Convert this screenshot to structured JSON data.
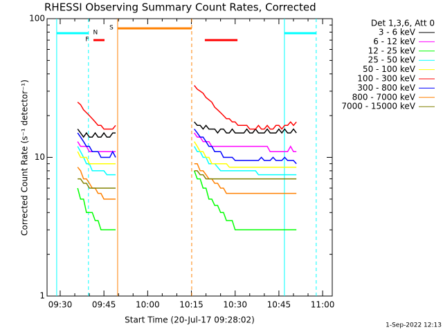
{
  "chart_data": {
    "type": "line",
    "title": "RHESSI Observing Summary Count Rates, Corrected",
    "xlabel": "Start Time (20-Jul-17 09:28:02)",
    "ylabel": "Corrected Count Rate (s⁻¹ detector⁻¹)",
    "legend_title": "Det 1,3,6, Att 0",
    "footer": "1-Sep-2022 12:13",
    "log_y": true,
    "legend": "right",
    "xlim": [
      565.5,
      663.3
    ],
    "ylim": [
      1,
      100
    ],
    "xticks": [
      {
        "value": 570,
        "label": "09:30"
      },
      {
        "value": 585,
        "label": "09:45"
      },
      {
        "value": 600,
        "label": "10:00"
      },
      {
        "value": 615,
        "label": "10:15"
      },
      {
        "value": 630,
        "label": "10:30"
      },
      {
        "value": 645,
        "label": "10:45"
      },
      {
        "value": 660,
        "label": "11:00"
      }
    ],
    "xminor_ticks": [
      575,
      580,
      590,
      595,
      605,
      610,
      620,
      625,
      635,
      640,
      650,
      655
    ],
    "yticks": [
      1,
      10,
      100
    ],
    "yminor_ticks": [
      2,
      3,
      4,
      5,
      6,
      7,
      8,
      9,
      20,
      30,
      40,
      50,
      60,
      70,
      80,
      90
    ],
    "flags": [
      {
        "label": "N",
        "color": "#00ffff",
        "intervals": [
          [
            568.8,
            579.7
          ],
          [
            646.9,
            657.8
          ]
        ]
      },
      {
        "label": "S",
        "color": "#ff8000",
        "intervals": [
          [
            589.7,
            615.1
          ]
        ]
      },
      {
        "label": "F",
        "color": "#ff0000",
        "intervals": [
          [
            581.4,
            585.2
          ],
          [
            619.6,
            630.8
          ]
        ]
      }
    ],
    "x": [
      576,
      577,
      578,
      579,
      580,
      581,
      582,
      583,
      584,
      585,
      586,
      587,
      588,
      589,
      590,
      616,
      617,
      618,
      619,
      620,
      621,
      622,
      623,
      624,
      625,
      626,
      627,
      628,
      629,
      630,
      631,
      632,
      633,
      634,
      635,
      636,
      637,
      638,
      639,
      640,
      641,
      642,
      643,
      644,
      645,
      646,
      647,
      648,
      649,
      650,
      651
    ],
    "series": [
      {
        "name": "3 - 6 keV",
        "color": "#000000",
        "values": [
          16,
          15,
          14,
          15,
          14,
          14,
          15,
          14,
          14,
          15,
          14,
          14,
          15,
          15,
          null,
          18,
          17,
          17,
          16,
          17,
          16,
          16,
          16,
          15,
          16,
          16,
          15,
          15,
          16,
          15,
          15,
          15,
          15,
          16,
          15,
          15,
          16,
          15,
          15,
          15,
          16,
          15,
          15,
          15,
          16,
          15,
          16,
          15,
          15,
          16,
          15
        ]
      },
      {
        "name": "6 - 12 keV",
        "color": "#ff00ff",
        "values": [
          13,
          12,
          12,
          12,
          11,
          11,
          11,
          11,
          11,
          11,
          11,
          11,
          11,
          11,
          null,
          15,
          14,
          14,
          13,
          13,
          13,
          12,
          12,
          12,
          12,
          12,
          12,
          12,
          12,
          12,
          12,
          12,
          12,
          12,
          12,
          12,
          12,
          12,
          12,
          12,
          12,
          11,
          11,
          11,
          11,
          11,
          11,
          11,
          12,
          11,
          11
        ]
      },
      {
        "name": "12 - 25 keV",
        "color": "#00ff00",
        "values": [
          6,
          5,
          5,
          4,
          4,
          4,
          3.5,
          3.5,
          3,
          3,
          3,
          3,
          3,
          3,
          null,
          8,
          7,
          7,
          6,
          6,
          5,
          5,
          4.5,
          4.5,
          4,
          4,
          3.5,
          3.5,
          3.5,
          3,
          3,
          3,
          3,
          3,
          3,
          3,
          3,
          3,
          3,
          3,
          3,
          3,
          3,
          3,
          3,
          3,
          3,
          3,
          3,
          3,
          3
        ]
      },
      {
        "name": "25 - 50 keV",
        "color": "#00ffff",
        "values": [
          12,
          11,
          10,
          9,
          9,
          8,
          8,
          8,
          8,
          8,
          7.5,
          7.5,
          7.5,
          7.5,
          null,
          12,
          11,
          11,
          10,
          10,
          9,
          9,
          9,
          8.5,
          8,
          8,
          8,
          8,
          8,
          8,
          8,
          8,
          8,
          8,
          8,
          8,
          8,
          7.5,
          7.5,
          7.5,
          7.5,
          7.5,
          7.5,
          7.5,
          7.5,
          7.5,
          7.5,
          7.5,
          7.5,
          7.5,
          7.5
        ]
      },
      {
        "name": "50 - 100 keV",
        "color": "#ffff00",
        "values": [
          11,
          10,
          10,
          10,
          9,
          9,
          9,
          9,
          9,
          9,
          9,
          9,
          9,
          9,
          null,
          13,
          12,
          11,
          11,
          10,
          10,
          9,
          9,
          9,
          9,
          9,
          9,
          8.5,
          8.5,
          8.5,
          8.5,
          8.5,
          8.5,
          8.5,
          8.5,
          8.5,
          8.5,
          8.5,
          8.5,
          8.5,
          8.5,
          8.5,
          8.5,
          8.5,
          8.5,
          8.5,
          8.5,
          8.5,
          8.5,
          8.5,
          8.5
        ]
      },
      {
        "name": "100 - 300 keV",
        "color": "#ff0000",
        "values": [
          25,
          24,
          22,
          21,
          20,
          19,
          18,
          17,
          17,
          16,
          16,
          16,
          16,
          17,
          null,
          33,
          31,
          30,
          29,
          27,
          26,
          25,
          23,
          22,
          21,
          20,
          19,
          19,
          18,
          18,
          17,
          17,
          17,
          17,
          16,
          16,
          16,
          17,
          16,
          16,
          17,
          16,
          16,
          17,
          17,
          16,
          17,
          17,
          18,
          17,
          18
        ]
      },
      {
        "name": "300 - 800 keV",
        "color": "#0000ff",
        "values": [
          15,
          14,
          13,
          12,
          12,
          11,
          11,
          11,
          10,
          10,
          10,
          10,
          11,
          10,
          null,
          16,
          15,
          14,
          14,
          13,
          12,
          12,
          11,
          11,
          11,
          10,
          10,
          10,
          10,
          9.5,
          9.5,
          9.5,
          9.5,
          9.5,
          9.5,
          9.5,
          9.5,
          9.5,
          10,
          9.5,
          9.5,
          9.5,
          10,
          9.5,
          9.5,
          9.5,
          10,
          9.5,
          9.5,
          9.5,
          9
        ]
      },
      {
        "name": "800 - 7000 keV",
        "color": "#ff8000",
        "values": [
          8.5,
          8,
          7,
          7,
          6.5,
          6,
          6,
          5.5,
          5.5,
          5,
          5,
          5,
          5,
          5,
          null,
          9,
          9,
          8,
          8,
          7.5,
          7,
          7,
          6.5,
          6.5,
          6,
          6,
          5.5,
          5.5,
          5.5,
          5.5,
          5.5,
          5.5,
          5.5,
          5.5,
          5.5,
          5.5,
          5.5,
          5.5,
          5.5,
          5.5,
          5.5,
          5.5,
          5.5,
          5.5,
          5.5,
          5.5,
          5.5,
          5.5,
          5.5,
          5.5,
          5.5
        ]
      },
      {
        "name": "7000 - 15000 keV",
        "color": "#808000",
        "values": [
          7,
          7,
          6.5,
          6.5,
          6,
          6,
          6,
          6,
          6,
          6,
          6,
          6,
          6,
          6,
          null,
          8,
          8,
          7.5,
          7.5,
          7,
          7,
          7,
          7,
          7,
          7,
          7,
          7,
          7,
          7,
          7,
          7,
          7,
          7,
          7,
          7,
          7,
          7,
          7,
          7,
          7,
          7,
          7,
          7,
          7,
          7,
          7,
          7,
          7,
          7,
          7,
          7
        ]
      }
    ]
  }
}
